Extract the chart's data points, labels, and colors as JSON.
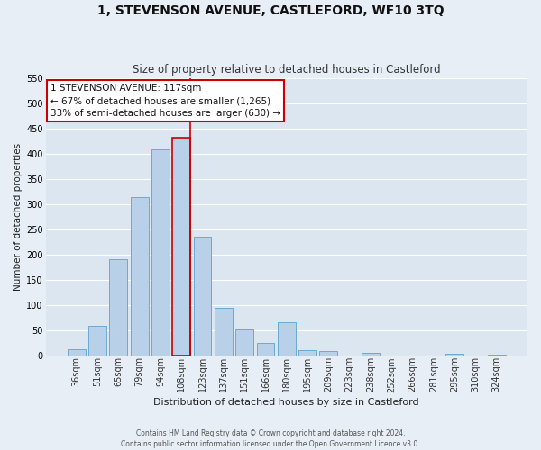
{
  "title": "1, STEVENSON AVENUE, CASTLEFORD, WF10 3TQ",
  "subtitle": "Size of property relative to detached houses in Castleford",
  "xlabel": "Distribution of detached houses by size in Castleford",
  "ylabel": "Number of detached properties",
  "bin_labels": [
    "36sqm",
    "51sqm",
    "65sqm",
    "79sqm",
    "94sqm",
    "108sqm",
    "123sqm",
    "137sqm",
    "151sqm",
    "166sqm",
    "180sqm",
    "195sqm",
    "209sqm",
    "223sqm",
    "238sqm",
    "252sqm",
    "266sqm",
    "281sqm",
    "295sqm",
    "310sqm",
    "324sqm"
  ],
  "bar_values": [
    12,
    59,
    191,
    314,
    408,
    432,
    235,
    94,
    52,
    25,
    65,
    10,
    8,
    0,
    5,
    0,
    0,
    0,
    3,
    0,
    2
  ],
  "bar_color": "#b8d0e8",
  "bar_edgecolor": "#6aaad4",
  "highlight_index": 5,
  "highlight_color": "#cc0000",
  "ylim": [
    0,
    550
  ],
  "yticks": [
    0,
    50,
    100,
    150,
    200,
    250,
    300,
    350,
    400,
    450,
    500,
    550
  ],
  "annotation_title": "1 STEVENSON AVENUE: 117sqm",
  "annotation_line1": "← 67% of detached houses are smaller (1,265)",
  "annotation_line2": "33% of semi-detached houses are larger (630) →",
  "annotation_box_color": "#cc0000",
  "footer_line1": "Contains HM Land Registry data © Crown copyright and database right 2024.",
  "footer_line2": "Contains public sector information licensed under the Open Government Licence v3.0.",
  "background_color": "#e8eef5",
  "plot_bg_color": "#dce6f0"
}
